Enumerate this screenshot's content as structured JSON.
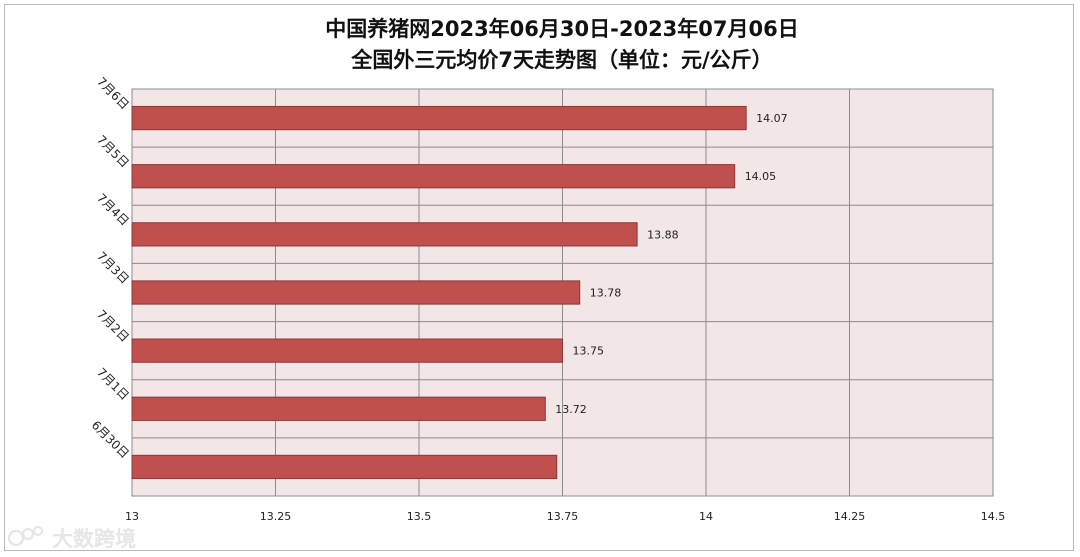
{
  "watermark": "大数跨境",
  "chart_data": {
    "type": "bar",
    "orientation": "horizontal",
    "title": [
      "中国养猪网2023年06月30日-2023年07月06日",
      "全国外三元均价7天走势图（单位：元/公斤）"
    ],
    "categories": [
      "7月6日",
      "7月5日",
      "7月4日",
      "7月3日",
      "7月2日",
      "7月1日",
      "6月30日"
    ],
    "values": [
      14.07,
      14.05,
      13.88,
      13.78,
      13.75,
      13.72,
      13.74
    ],
    "data_labels": [
      "14.07",
      "14.05",
      "13.88",
      "13.78",
      "13.75",
      "13.72",
      ""
    ],
    "xlim": [
      13,
      14.5
    ],
    "xticks": [
      13,
      13.25,
      13.5,
      13.75,
      14,
      14.25,
      14.5
    ],
    "xtick_labels": [
      "13",
      "13.25",
      "13.5",
      "13.75",
      "14",
      "14.25",
      "14.5"
    ],
    "grid": true,
    "legend": "none",
    "colors": {
      "bar": "#c0504d",
      "bar_edge": "#8c3836",
      "plot_bg": "#f2e6e6",
      "grid": "#8c8c8c"
    }
  }
}
